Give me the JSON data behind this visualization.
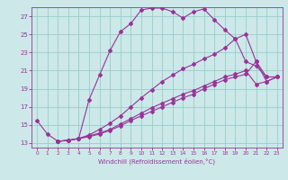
{
  "xlabel": "Windchill (Refroidissement éolien,°C)",
  "bg_color": "#cce8e8",
  "grid_color": "#99cccc",
  "line_color": "#993399",
  "xlim": [
    -0.5,
    23.5
  ],
  "ylim": [
    12.5,
    28.0
  ],
  "xticks": [
    0,
    1,
    2,
    3,
    4,
    5,
    6,
    7,
    8,
    9,
    10,
    11,
    12,
    13,
    14,
    15,
    16,
    17,
    18,
    19,
    20,
    21,
    22,
    23
  ],
  "yticks": [
    13,
    15,
    17,
    19,
    21,
    23,
    25,
    27
  ],
  "line1_x": [
    0,
    1,
    2,
    3,
    4,
    5,
    6,
    7,
    8,
    9,
    10,
    11,
    12,
    13,
    14,
    15,
    16,
    17,
    18,
    19,
    20,
    21,
    22,
    23
  ],
  "line1_y": [
    15.5,
    14.0,
    13.2,
    13.3,
    13.5,
    17.8,
    20.5,
    23.2,
    25.3,
    26.2,
    27.7,
    27.9,
    27.9,
    27.5,
    26.8,
    27.5,
    27.8,
    26.6,
    25.5,
    24.5,
    25.0,
    22.0,
    19.8,
    20.3
  ],
  "line2_x": [
    2,
    3,
    4,
    5,
    6,
    7,
    8,
    9,
    10,
    11,
    12,
    13,
    14,
    15,
    16,
    17,
    18,
    19,
    20,
    21,
    22,
    23
  ],
  "line2_y": [
    13.2,
    13.3,
    13.5,
    13.7,
    14.0,
    14.4,
    14.9,
    15.5,
    16.0,
    16.5,
    17.0,
    17.5,
    18.0,
    18.4,
    19.0,
    19.5,
    20.0,
    20.3,
    20.6,
    22.0,
    20.3,
    20.3
  ],
  "line3_x": [
    2,
    3,
    4,
    5,
    6,
    7,
    8,
    9,
    10,
    11,
    12,
    13,
    14,
    15,
    16,
    17,
    18,
    19,
    20,
    21,
    22,
    23
  ],
  "line3_y": [
    13.2,
    13.3,
    13.5,
    13.8,
    14.1,
    14.5,
    15.1,
    15.7,
    16.3,
    16.9,
    17.4,
    17.9,
    18.4,
    18.8,
    19.3,
    19.8,
    20.3,
    20.6,
    21.0,
    19.5,
    19.8,
    20.3
  ],
  "line4_x": [
    2,
    3,
    4,
    5,
    6,
    7,
    8,
    9,
    10,
    11,
    12,
    13,
    14,
    15,
    16,
    17,
    18,
    19,
    20,
    21,
    22,
    23
  ],
  "line4_y": [
    13.2,
    13.3,
    13.5,
    13.9,
    14.5,
    15.2,
    16.0,
    17.0,
    18.0,
    18.9,
    19.8,
    20.5,
    21.2,
    21.7,
    22.3,
    22.8,
    23.5,
    24.5,
    22.0,
    21.5,
    20.3,
    20.3
  ]
}
